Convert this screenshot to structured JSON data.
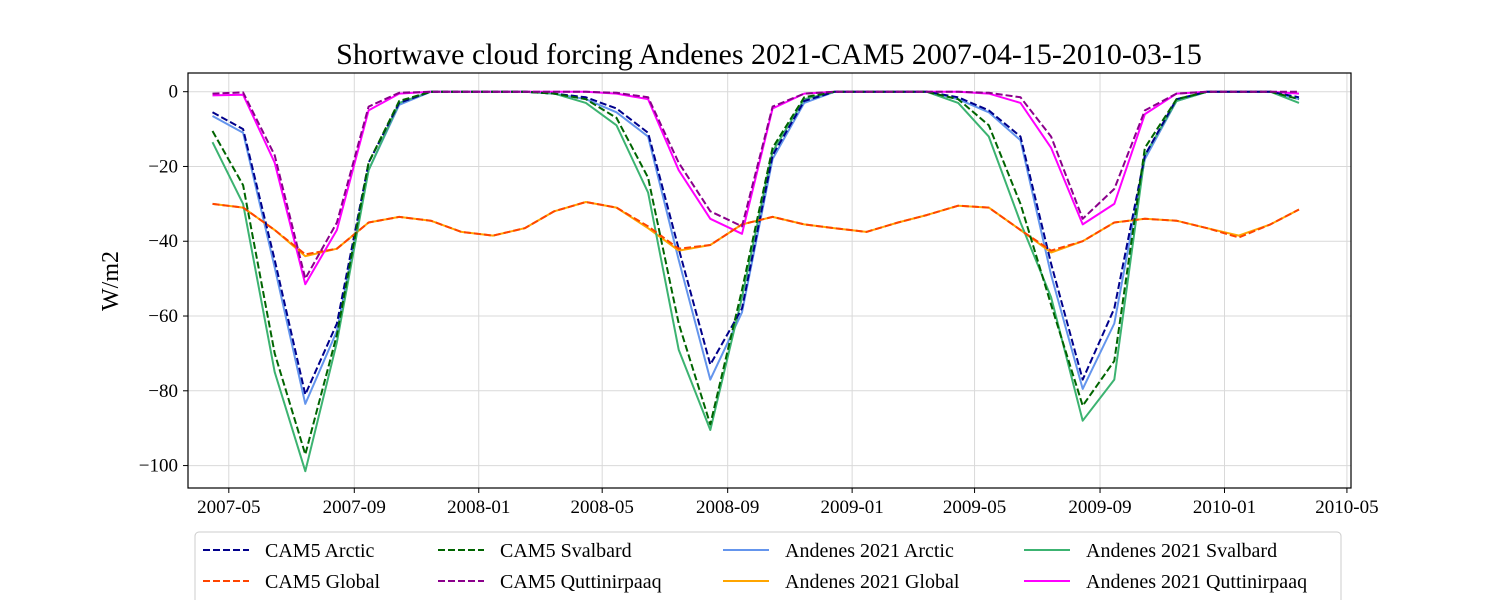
{
  "chart_data": {
    "type": "line",
    "title": "Shortwave cloud forcing Andenes 2021-CAM5 2007-04-15-2010-03-15",
    "xlabel": "",
    "ylabel": "W/m2",
    "ylim": [
      -106,
      5
    ],
    "xlim": [
      "2007-03-22",
      "2010-05-05"
    ],
    "grid": true,
    "legend_position": "bottom",
    "x_ticks": [
      "2007-05",
      "2007-09",
      "2008-01",
      "2008-05",
      "2008-09",
      "2009-01",
      "2009-05",
      "2009-09",
      "2010-01",
      "2010-05"
    ],
    "y_ticks": [
      "0",
      "−20",
      "−40",
      "−60",
      "−80",
      "−100"
    ],
    "y_tick_values": [
      0,
      -20,
      -40,
      -60,
      -80,
      -100
    ],
    "x": [
      "2007-04-15",
      "2007-05-15",
      "2007-06-15",
      "2007-07-15",
      "2007-08-15",
      "2007-09-15",
      "2007-10-15",
      "2007-11-15",
      "2007-12-15",
      "2008-01-15",
      "2008-02-15",
      "2008-03-15",
      "2008-04-15",
      "2008-05-15",
      "2008-06-15",
      "2008-07-15",
      "2008-08-15",
      "2008-09-15",
      "2008-10-15",
      "2008-11-15",
      "2008-12-15",
      "2009-01-15",
      "2009-02-15",
      "2009-03-15",
      "2009-04-15",
      "2009-05-15",
      "2009-06-15",
      "2009-07-15",
      "2009-08-15",
      "2009-09-15",
      "2009-10-15",
      "2009-11-15",
      "2009-12-15",
      "2010-01-15",
      "2010-02-15",
      "2010-03-15"
    ],
    "series": [
      {
        "name": "CAM5 Arctic",
        "color": "#00008b",
        "style": "dashed",
        "values": [
          -5.5,
          -10,
          -45,
          -81,
          -62,
          -19,
          -3,
          0,
          0,
          0,
          0,
          -0.5,
          -1.5,
          -4.5,
          -11,
          -42,
          -73,
          -58,
          -17,
          -2.5,
          0,
          0,
          0,
          0,
          -1.5,
          -5,
          -12,
          -46,
          -77,
          -58,
          -17,
          -2,
          0,
          0,
          0,
          -1.5
        ]
      },
      {
        "name": "CAM5 Global",
        "color": "#ff4500",
        "style": "dashed",
        "values": [
          -30,
          -31,
          -37,
          -43.5,
          -42,
          -35,
          -33.5,
          -34.5,
          -37.5,
          -38.5,
          -36.5,
          -32,
          -29.5,
          -31,
          -36,
          -42,
          -41,
          -35.5,
          -33.5,
          -35.5,
          -36.5,
          -37.5,
          -35,
          -33,
          -30.5,
          -31,
          -37,
          -42.5,
          -40,
          -35,
          -34,
          -34.5,
          -36.5,
          -39,
          -35.5,
          -31.5
        ]
      },
      {
        "name": "CAM5 Svalbard",
        "color": "#006400",
        "style": "dashed",
        "values": [
          -10.5,
          -25,
          -70,
          -97,
          -65,
          -19,
          -2.5,
          0,
          0,
          0,
          0,
          -0.5,
          -2,
          -7,
          -23,
          -62,
          -89,
          -53,
          -15,
          -1.5,
          0,
          0,
          0,
          0,
          -2,
          -9,
          -30,
          -57,
          -84,
          -72,
          -15,
          -2,
          0,
          0,
          0,
          -2
        ]
      },
      {
        "name": "CAM5 Quttinirpaaq",
        "color": "#8b008b",
        "style": "dashed",
        "values": [
          -0.5,
          -0.2,
          -17,
          -50,
          -35,
          -4,
          -0.3,
          0,
          0,
          0,
          0,
          0,
          0,
          -0.3,
          -1.5,
          -19,
          -32,
          -36,
          -4,
          -0.5,
          0,
          0,
          0,
          0,
          0,
          -0.3,
          -1.5,
          -12,
          -34,
          -26,
          -5,
          -0.5,
          0,
          0,
          0,
          0
        ]
      },
      {
        "name": "Andenes 2021 Arctic",
        "color": "#6495ed",
        "style": "solid",
        "values": [
          -6.5,
          -11,
          -47,
          -83.5,
          -64,
          -21,
          -3.5,
          0,
          0,
          0,
          0,
          -0.5,
          -2,
          -5.5,
          -12,
          -45,
          -77,
          -59,
          -18,
          -3,
          0,
          0,
          0,
          0,
          -2,
          -5.5,
          -13,
          -49,
          -79.5,
          -62,
          -18,
          -2.5,
          0,
          0,
          0,
          -2
        ]
      },
      {
        "name": "Andenes 2021 Global",
        "color": "#ffa500",
        "style": "solid",
        "values": [
          -30,
          -31,
          -37,
          -44,
          -42,
          -35,
          -33.5,
          -34.5,
          -37.5,
          -38.5,
          -36.5,
          -32,
          -29.5,
          -31,
          -36.5,
          -42.5,
          -41,
          -35.5,
          -33.5,
          -35.5,
          -36.5,
          -37.5,
          -35,
          -33,
          -30.5,
          -31,
          -37,
          -43,
          -40,
          -35,
          -34,
          -34.5,
          -36.5,
          -38.5,
          -35.5,
          -31.5
        ]
      },
      {
        "name": "Andenes 2021 Svalbard",
        "color": "#3cb371",
        "style": "solid",
        "values": [
          -13.5,
          -30,
          -75,
          -101.5,
          -67,
          -21,
          -3,
          0,
          0,
          0,
          0,
          -0.5,
          -3,
          -9,
          -27,
          -69,
          -90.5,
          -55,
          -16,
          -2,
          0,
          0,
          0,
          0,
          -3,
          -12,
          -35,
          -55,
          -88,
          -77,
          -17,
          -2.5,
          0,
          0,
          0,
          -3
        ]
      },
      {
        "name": "Andenes 2021 Quttinirpaaq",
        "color": "#ff00ff",
        "style": "solid",
        "values": [
          -1,
          -0.8,
          -19,
          -51.5,
          -37,
          -5,
          -0.5,
          0,
          0,
          0,
          0,
          0,
          0,
          -0.5,
          -2,
          -21,
          -34,
          -38,
          -4.5,
          -0.5,
          0,
          0,
          0,
          0,
          0,
          -0.5,
          -3,
          -15,
          -35.5,
          -30,
          -6,
          -0.5,
          0,
          0,
          0,
          -0.5
        ]
      }
    ]
  }
}
